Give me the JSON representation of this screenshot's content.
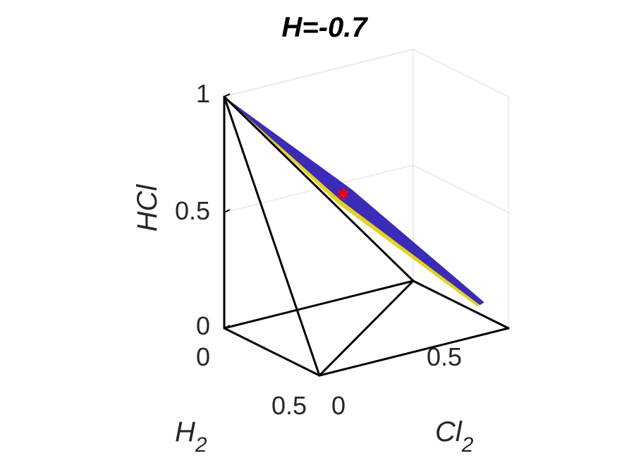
{
  "chart_data": {
    "type": "scatter",
    "title": "H=-0.7",
    "axes": {
      "x": {
        "label_main": "H",
        "label_sub": "2",
        "range": [
          0,
          0.5
        ],
        "ticks": [
          "0",
          "0.5"
        ]
      },
      "y": {
        "label_main": "Cl",
        "label_sub": "2",
        "range": [
          0,
          0.5
        ],
        "ticks": [
          "0",
          "0.5"
        ]
      },
      "z": {
        "label": "HCl",
        "range": [
          0,
          1
        ],
        "ticks": [
          "0",
          "0.5",
          "1"
        ]
      }
    },
    "grid": true,
    "simplex_vertices": [
      [
        0,
        0,
        1
      ],
      [
        0.5,
        0,
        0
      ],
      [
        0,
        0.5,
        0
      ],
      [
        0,
        0,
        0
      ]
    ],
    "region": {
      "color": "#3a2bb8",
      "edge_color": "#e6d21e",
      "points": [
        [
          0,
          0,
          1
        ],
        [
          0.21,
          0.21,
          0.58
        ],
        [
          0.45,
          0.45,
          0.1
        ]
      ]
    },
    "marker": {
      "point": [
        0.21,
        0.21,
        0.58
      ],
      "color": "#ff0000",
      "symbol": "*"
    }
  }
}
